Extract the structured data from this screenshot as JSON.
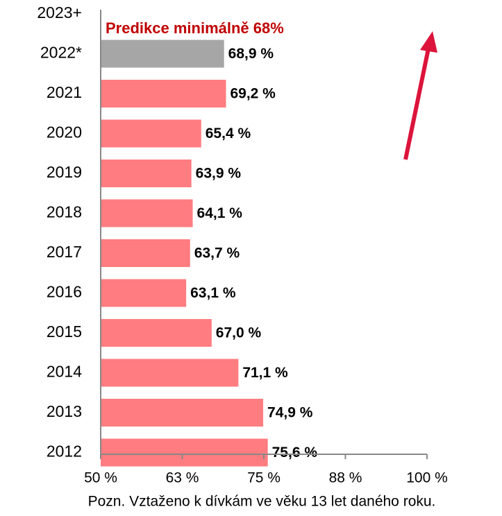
{
  "chart_data": {
    "type": "barh",
    "annotation": "Predikce minimálně 68%",
    "note": "Pozn. Vztaženo k dívkám ve věku 13 let daného roku.",
    "categories": [
      "2023+",
      "2022*",
      "2021",
      "2020",
      "2019",
      "2018",
      "2017",
      "2016",
      "2015",
      "2014",
      "2013",
      "2012"
    ],
    "values": [
      null,
      68.9,
      69.2,
      65.4,
      63.9,
      64.1,
      63.7,
      63.1,
      67.0,
      71.1,
      74.9,
      75.6
    ],
    "value_labels": [
      null,
      "68,9 %",
      "69,2 %",
      "65,4 %",
      "63,9 %",
      "64,1 %",
      "63,7 %",
      "63,1 %",
      "67,0 %",
      "71,1 %",
      "74,9 %",
      "75,6 %"
    ],
    "colors": [
      null,
      "#a6a6a6",
      "#ff7c80",
      "#ff7c80",
      "#ff7c80",
      "#ff7c80",
      "#ff7c80",
      "#ff7c80",
      "#ff7c80",
      "#ff7c80",
      "#ff7c80",
      "#ff7c80"
    ],
    "xlim": [
      50,
      100
    ],
    "xticks": [
      {
        "value": 50,
        "label": "50 %"
      },
      {
        "value": 62.5,
        "label": "63 %"
      },
      {
        "value": 75,
        "label": "75 %"
      },
      {
        "value": 87.5,
        "label": "88 %"
      },
      {
        "value": 100,
        "label": "100 %"
      }
    ]
  }
}
